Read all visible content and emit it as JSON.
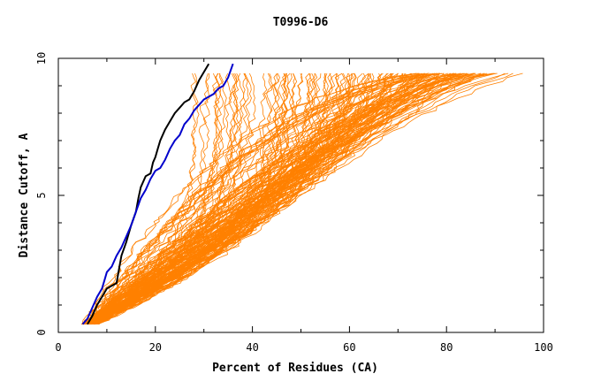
{
  "chart_data": {
    "type": "line",
    "title": "T0996-D6",
    "xlabel": "Percent of Residues (CA)",
    "ylabel": "Distance Cutoff, A",
    "xlim": [
      0,
      100
    ],
    "ylim": [
      0,
      10
    ],
    "x_ticks": [
      "0",
      "20",
      "40",
      "60",
      "80",
      "100"
    ],
    "y_ticks": [
      "0",
      "5",
      "10"
    ],
    "grid": false,
    "colors": {
      "background_models": "#ff8000",
      "highlight_black": "#000000",
      "highlight_blue": "#0000cc"
    },
    "series": [
      {
        "color": "#000000",
        "points": [
          [
            6,
            0.3
          ],
          [
            7,
            0.6
          ],
          [
            8,
            1.0
          ],
          [
            9,
            1.3
          ],
          [
            10,
            1.6
          ],
          [
            11,
            1.7
          ],
          [
            12,
            1.8
          ],
          [
            12.5,
            2.3
          ],
          [
            13,
            2.8
          ],
          [
            14,
            3.3
          ],
          [
            15,
            3.9
          ],
          [
            16,
            4.4
          ],
          [
            16.5,
            4.9
          ],
          [
            17,
            5.3
          ],
          [
            18,
            5.7
          ],
          [
            19,
            5.8
          ],
          [
            19.5,
            6.2
          ],
          [
            20,
            6.4
          ],
          [
            20.5,
            6.7
          ],
          [
            21,
            7.0
          ],
          [
            22,
            7.4
          ],
          [
            23,
            7.7
          ],
          [
            24,
            8.0
          ],
          [
            25,
            8.2
          ],
          [
            26,
            8.4
          ],
          [
            27,
            8.5
          ],
          [
            28,
            8.8
          ],
          [
            29,
            9.2
          ],
          [
            30,
            9.5
          ],
          [
            31,
            9.8
          ]
        ]
      },
      {
        "color": "#0000cc",
        "points": [
          [
            5,
            0.3
          ],
          [
            6,
            0.5
          ],
          [
            7,
            0.9
          ],
          [
            8,
            1.3
          ],
          [
            9,
            1.6
          ],
          [
            9.5,
            1.9
          ],
          [
            10,
            2.2
          ],
          [
            11,
            2.4
          ],
          [
            12,
            2.8
          ],
          [
            13,
            3.1
          ],
          [
            14,
            3.5
          ],
          [
            15,
            3.9
          ],
          [
            16,
            4.4
          ],
          [
            17,
            4.9
          ],
          [
            18,
            5.2
          ],
          [
            19,
            5.6
          ],
          [
            20,
            5.9
          ],
          [
            21,
            6.0
          ],
          [
            22,
            6.3
          ],
          [
            23,
            6.7
          ],
          [
            24,
            7.0
          ],
          [
            25,
            7.2
          ],
          [
            26,
            7.6
          ],
          [
            27,
            7.8
          ],
          [
            28,
            8.1
          ],
          [
            29,
            8.3
          ],
          [
            30,
            8.5
          ],
          [
            32,
            8.7
          ],
          [
            33,
            8.9
          ],
          [
            34,
            9.0
          ],
          [
            35,
            9.3
          ],
          [
            36,
            9.8
          ]
        ]
      }
    ]
  }
}
